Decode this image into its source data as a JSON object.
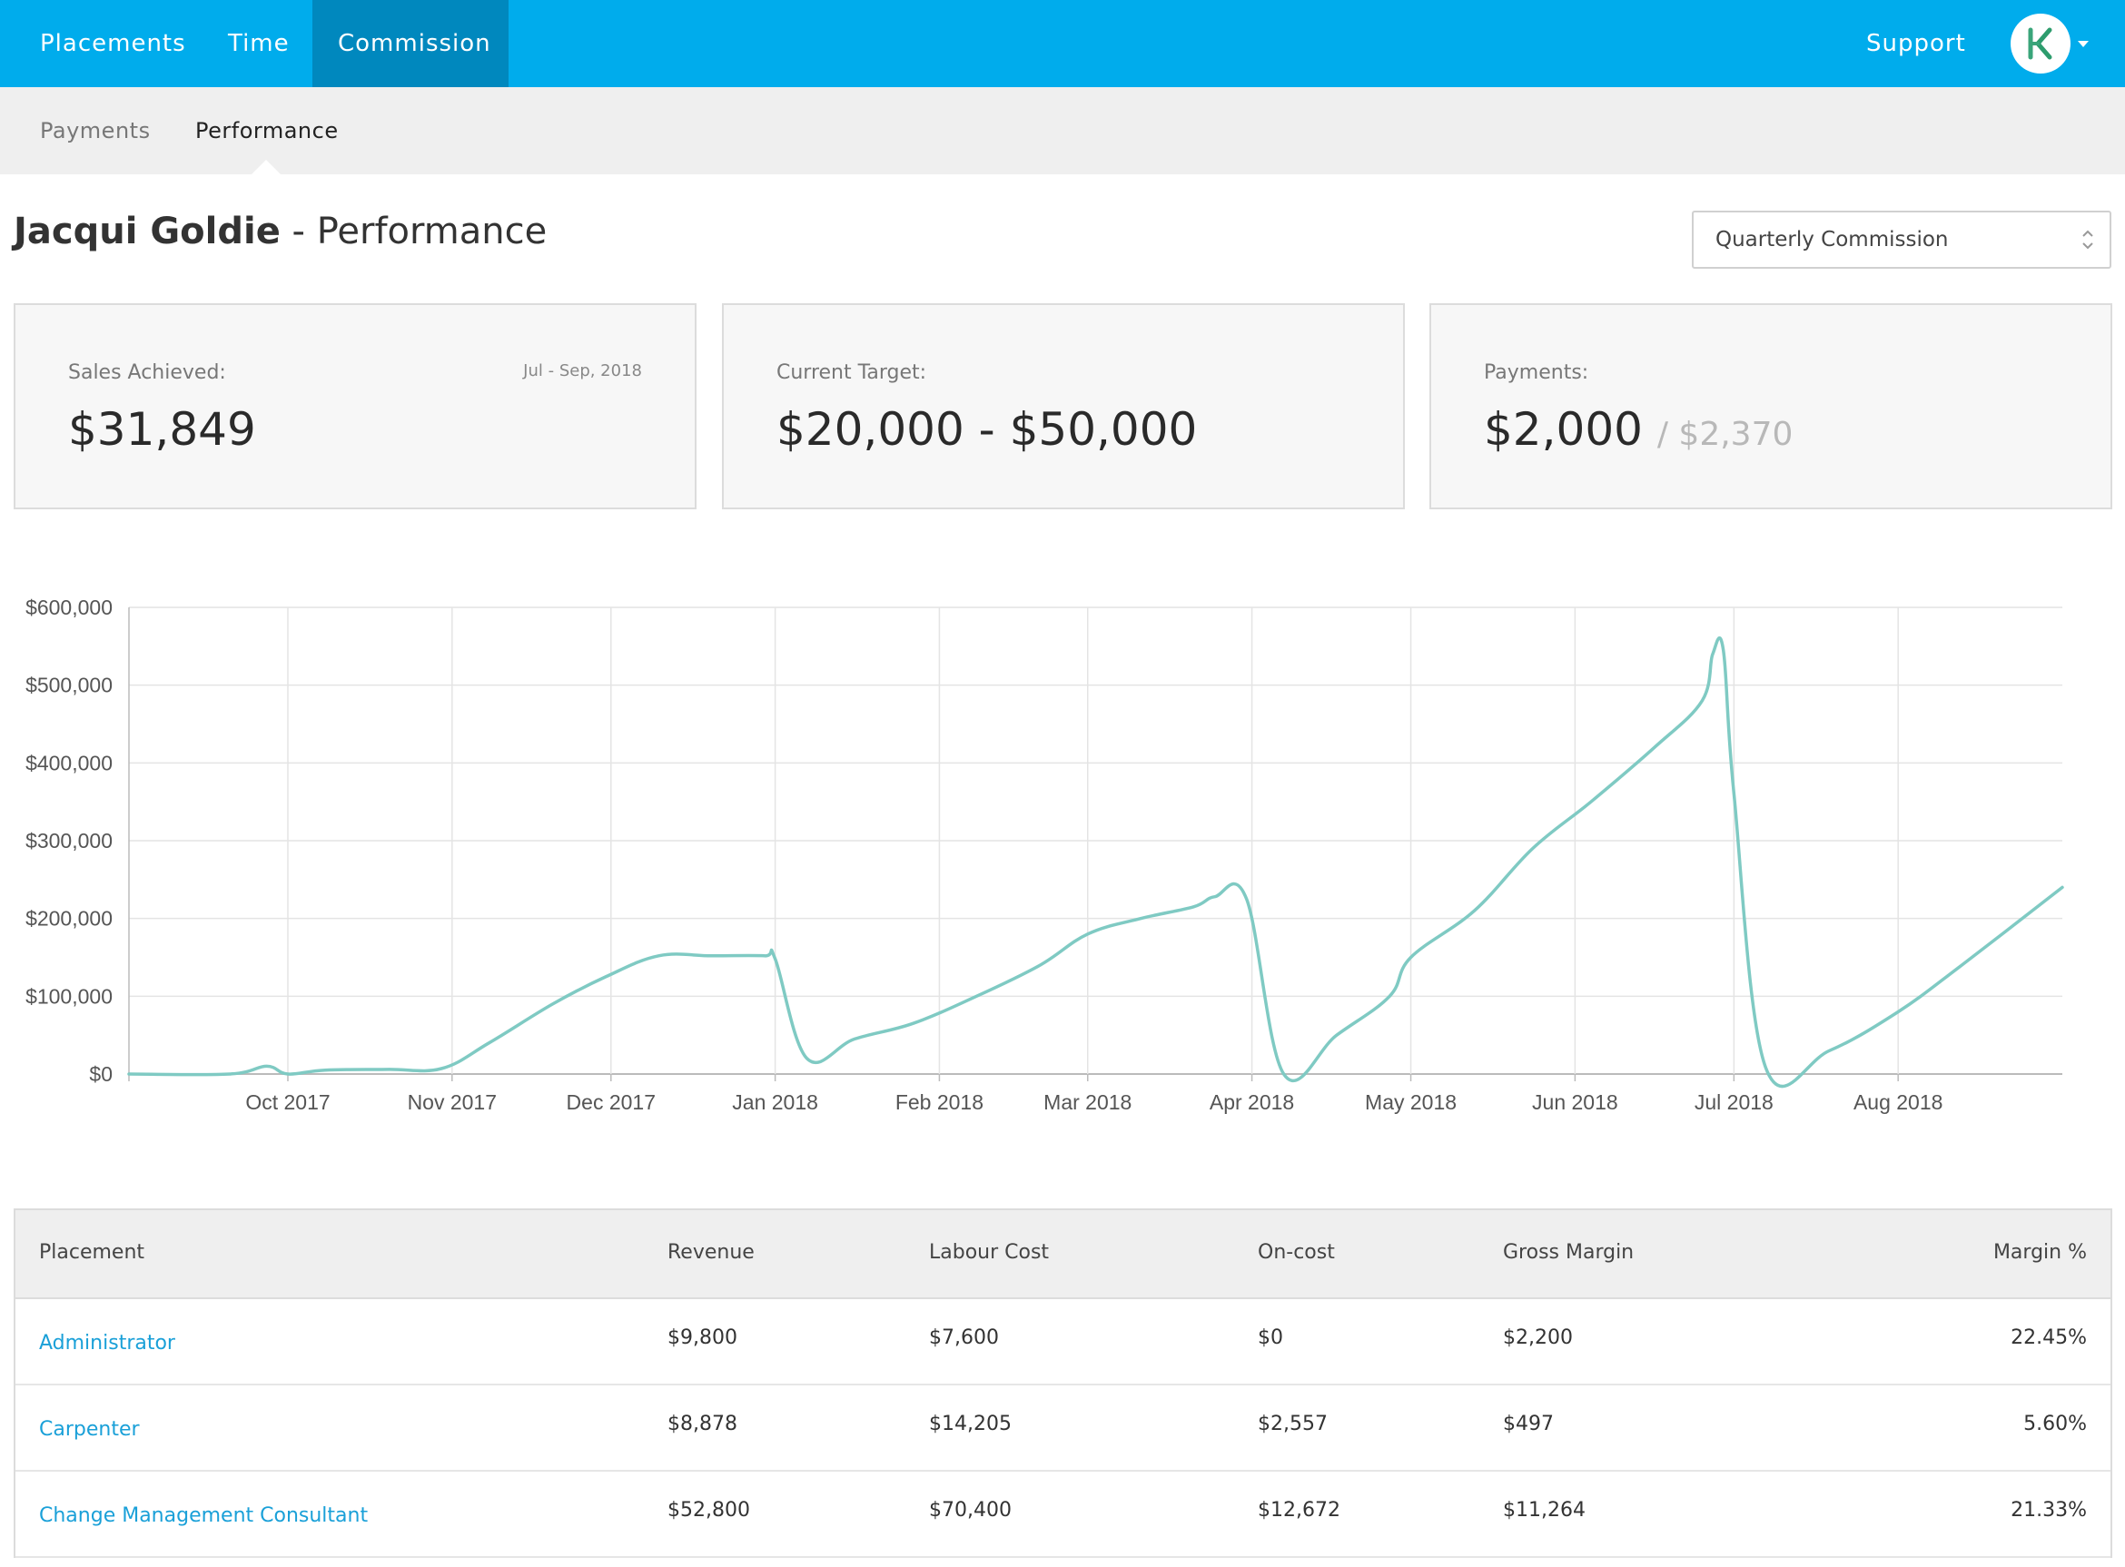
{
  "top_nav": {
    "items": [
      {
        "label": "Placements",
        "active": false
      },
      {
        "label": "Time",
        "active": false
      },
      {
        "label": "Commission",
        "active": true
      }
    ],
    "support_label": "Support",
    "accent_color": "#00acec",
    "active_color": "#0088be",
    "avatar_icon": "hk-logo-icon"
  },
  "sub_nav": {
    "items": [
      {
        "label": "Payments",
        "active": false
      },
      {
        "label": "Performance",
        "active": true
      }
    ]
  },
  "header": {
    "name": "Jacqui Goldie",
    "separator": " - ",
    "section": "Performance",
    "period_select": {
      "value": "Quarterly Commission"
    }
  },
  "cards": {
    "sales": {
      "label": "Sales Achieved:",
      "period": "Jul - Sep, 2018",
      "value": "$31,849"
    },
    "target": {
      "label": "Current Target:",
      "value": "$20,000 - $50,000"
    },
    "payments": {
      "label": "Payments:",
      "value": "$2,000",
      "sub_value": "/ $2,370"
    }
  },
  "chart_data": {
    "type": "line",
    "title": "",
    "xlabel": "",
    "ylabel": "",
    "x_tick_labels": [
      "Oct 2017",
      "Nov 2017",
      "Dec 2017",
      "Jan 2018",
      "Feb 2018",
      "Mar 2018",
      "Apr 2018",
      "May 2018",
      "Jun 2018",
      "Jul 2018",
      "Aug 2018"
    ],
    "y_tick_labels": [
      "$0",
      "$100,000",
      "$200,000",
      "$300,000",
      "$400,000",
      "$500,000",
      "$600,000"
    ],
    "ylim": [
      0,
      600000
    ],
    "xlim": [
      "2017-09-01",
      "2018-09-01"
    ],
    "grid": true,
    "color": "#7fcac3",
    "series": [
      {
        "x": [
          "2017-09-01",
          "2017-09-20",
          "2017-09-27",
          "2017-10-01",
          "2017-10-08",
          "2017-10-20",
          "2017-10-30",
          "2017-11-08",
          "2017-11-20",
          "2017-11-30",
          "2017-12-10",
          "2017-12-20",
          "2017-12-30",
          "2018-01-01",
          "2018-01-07",
          "2018-01-16",
          "2018-01-27",
          "2018-02-08",
          "2018-02-20",
          "2018-03-01",
          "2018-03-11",
          "2018-03-21",
          "2018-03-25",
          "2018-03-31",
          "2018-04-07",
          "2018-04-17",
          "2018-04-27",
          "2018-05-01",
          "2018-05-13",
          "2018-05-24",
          "2018-06-04",
          "2018-06-16",
          "2018-06-25",
          "2018-06-27",
          "2018-06-29",
          "2018-07-01",
          "2018-07-07",
          "2018-07-19",
          "2018-08-01",
          "2018-08-13",
          "2018-09-01"
        ],
        "y": [
          0,
          0,
          10000,
          0,
          5000,
          6000,
          7000,
          40000,
          90000,
          125000,
          152000,
          152000,
          152000,
          148000,
          20000,
          45000,
          65000,
          100000,
          140000,
          180000,
          200000,
          215000,
          228000,
          225000,
          0,
          50000,
          100000,
          150000,
          210000,
          290000,
          350000,
          420000,
          480000,
          540000,
          545000,
          360000,
          8000,
          30000,
          80000,
          140000,
          240000
        ]
      }
    ]
  },
  "table": {
    "columns": [
      "Placement",
      "Revenue",
      "Labour Cost",
      "On-cost",
      "Gross Margin",
      "Margin %"
    ],
    "rows": [
      [
        "Administrator",
        "$9,800",
        "$7,600",
        "$0",
        "$2,200",
        "22.45%"
      ],
      [
        "Carpenter",
        "$8,878",
        "$14,205",
        "$2,557",
        "$497",
        "5.60%"
      ],
      [
        "Change Management Consultant",
        "$52,800",
        "$70,400",
        "$12,672",
        "$11,264",
        "21.33%"
      ]
    ]
  }
}
